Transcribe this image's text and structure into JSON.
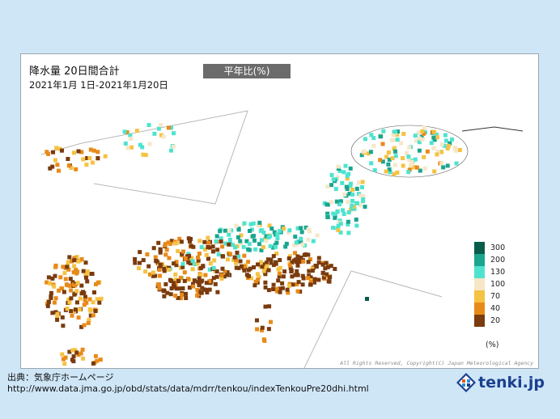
{
  "map": {
    "title": "降水量 20日間合計",
    "date_range": "2021年1月 1日-2021年1月20日",
    "metric_badge": "平年比(%)",
    "copyright": "All Rights Reserved, Copyright(C) Japan Meteorological Agency"
  },
  "legend": {
    "unit": "(%)",
    "items": [
      {
        "label": "300",
        "color": "#0a5c4a"
      },
      {
        "label": "200",
        "color": "#1aa58f"
      },
      {
        "label": "130",
        "color": "#4fe3cf"
      },
      {
        "label": "100",
        "color": "#f6e7c7"
      },
      {
        "label": "70",
        "color": "#f5c242"
      },
      {
        "label": "40",
        "color": "#e88a1a"
      },
      {
        "label": "20",
        "color": "#7a3b0e"
      }
    ]
  },
  "footer": {
    "source_label": "出典：気象庁ホームページ",
    "source_url": "http://www.data.jma.go.jp/obd/stats/data/mdrr/tenkou/indexTenkouPre20dhi.html",
    "logo_text": "tenki.jp"
  }
}
